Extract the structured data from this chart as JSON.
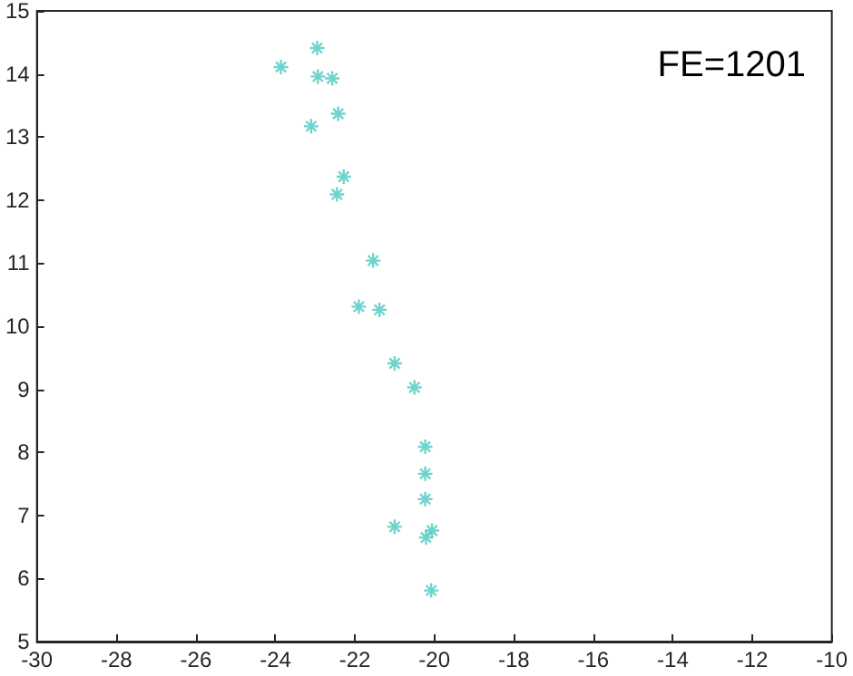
{
  "chart_data": {
    "type": "scatter",
    "annotations": [
      "FE=1201"
    ],
    "x": [
      -22.95,
      -23.86,
      -22.93,
      -22.57,
      -22.42,
      -23.1,
      -22.28,
      -22.45,
      -21.54,
      -21.9,
      -21.38,
      -21.0,
      -20.5,
      -20.23,
      -20.23,
      -20.23,
      -21.0,
      -20.06,
      -20.21,
      -20.08
    ],
    "series": [
      {
        "color": "#4cc8c0",
        "values": [
          14.41,
          14.11,
          13.96,
          13.93,
          13.37,
          13.17,
          12.37,
          12.09,
          11.04,
          10.31,
          10.26,
          9.41,
          9.03,
          8.09,
          7.66,
          7.26,
          6.82,
          6.76,
          6.65,
          5.81
        ]
      }
    ],
    "xlim": [
      -30,
      -10
    ],
    "xticks": [
      -30,
      -28,
      -26,
      -24,
      -22,
      -20,
      -18,
      -16,
      -14,
      -12,
      -10
    ],
    "ylim": [
      5,
      15
    ],
    "yticks": [
      5,
      6,
      7,
      8,
      9,
      10,
      11,
      12,
      13,
      14,
      15
    ],
    "marker": "cross",
    "grid": false
  }
}
